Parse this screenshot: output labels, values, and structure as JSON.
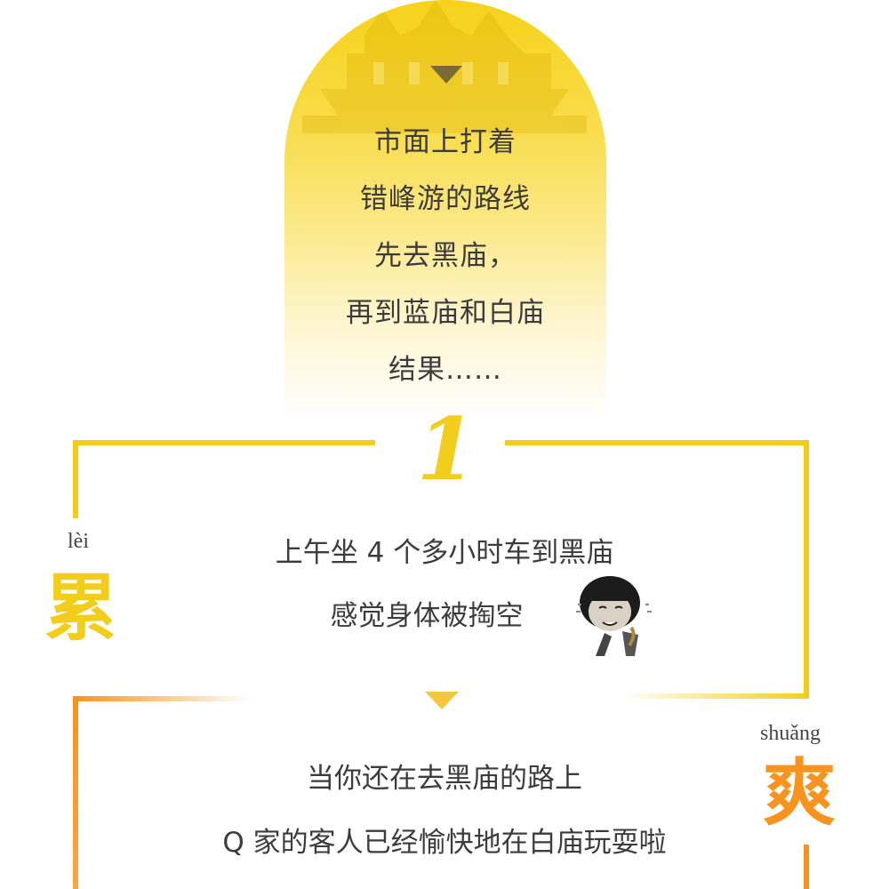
{
  "arch": {
    "lines": [
      "市面上打着",
      "错峰游的路线",
      "先去黑庙，",
      "再到蓝庙和白庙",
      "结果……"
    ]
  },
  "step": {
    "number": "1"
  },
  "tired": {
    "pinyin": "lèi",
    "char": "累",
    "lines": [
      "上午坐 4 个多小时车到黑庙",
      "感觉身体被掏空"
    ]
  },
  "happy": {
    "pinyin": "shuǎng",
    "char": "爽",
    "lines": [
      "当你还在去黑庙的路上",
      "Q 家的客人已经愉快地在白庙玩耍啦"
    ]
  },
  "colors": {
    "yellow": "#f3cd1c",
    "orange": "#f7931e"
  },
  "icons": {
    "emoji": "exhausted-meme-sticker-icon",
    "pointer": "down-triangle-icon"
  }
}
